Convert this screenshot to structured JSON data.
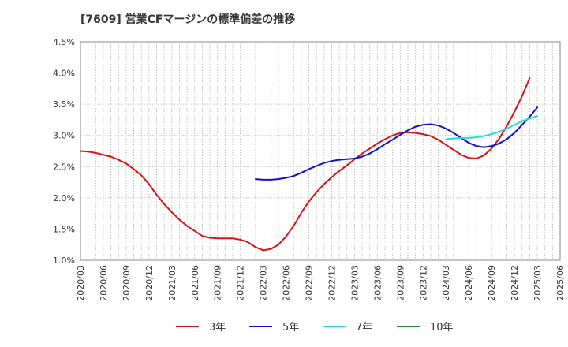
{
  "chart_data": {
    "type": "line",
    "title": "[7609]  営業CFマージンの標準偏差の推移",
    "xlabel": "",
    "ylabel": "",
    "ylim": [
      0.01,
      0.045
    ],
    "y_ticks": [
      "4.5%",
      "4.0%",
      "3.5%",
      "3.0%",
      "2.5%",
      "2.0%",
      "1.5%",
      "1.0%"
    ],
    "y_tick_values": [
      0.045,
      0.04,
      0.035,
      0.03,
      0.025,
      0.02,
      0.015,
      0.01
    ],
    "x_ticks": [
      "2020/03",
      "2020/06",
      "2020/09",
      "2020/12",
      "2021/03",
      "2021/06",
      "2021/09",
      "2021/12",
      "2022/03",
      "2022/06",
      "2022/09",
      "2022/12",
      "2023/03",
      "2023/06",
      "2023/09",
      "2023/12",
      "2024/03",
      "2024/06",
      "2024/09",
      "2024/12",
      "2025/03",
      "2025/06"
    ],
    "grid": true,
    "legend_position": "bottom",
    "series": [
      {
        "name": "3年",
        "color": "#dd1111",
        "points": [
          [
            "2020/03",
            0.0275
          ],
          [
            "2020/04",
            0.0274
          ],
          [
            "2020/05",
            0.0272
          ],
          [
            "2020/06",
            0.0269
          ],
          [
            "2020/07",
            0.0266
          ],
          [
            "2020/08",
            0.0261
          ],
          [
            "2020/09",
            0.0255
          ],
          [
            "2020/10",
            0.0246
          ],
          [
            "2020/11",
            0.0236
          ],
          [
            "2020/12",
            0.0222
          ],
          [
            "2021/01",
            0.0205
          ],
          [
            "2021/02",
            0.019
          ],
          [
            "2021/03",
            0.0177
          ],
          [
            "2021/04",
            0.0165
          ],
          [
            "2021/05",
            0.0155
          ],
          [
            "2021/06",
            0.0147
          ],
          [
            "2021/07",
            0.0139
          ],
          [
            "2021/08",
            0.0136
          ],
          [
            "2021/09",
            0.0135
          ],
          [
            "2021/10",
            0.0135
          ],
          [
            "2021/11",
            0.0135
          ],
          [
            "2021/12",
            0.0133
          ],
          [
            "2022/01",
            0.0129
          ],
          [
            "2022/02",
            0.0121
          ],
          [
            "2022/03",
            0.0116
          ],
          [
            "2022/04",
            0.0118
          ],
          [
            "2022/05",
            0.0125
          ],
          [
            "2022/06",
            0.0138
          ],
          [
            "2022/07",
            0.0155
          ],
          [
            "2022/08",
            0.0176
          ],
          [
            "2022/09",
            0.0194
          ],
          [
            "2022/10",
            0.0209
          ],
          [
            "2022/11",
            0.0222
          ],
          [
            "2022/12",
            0.0233
          ],
          [
            "2023/01",
            0.0243
          ],
          [
            "2023/02",
            0.0252
          ],
          [
            "2023/03",
            0.0262
          ],
          [
            "2023/04",
            0.0271
          ],
          [
            "2023/05",
            0.0279
          ],
          [
            "2023/06",
            0.0287
          ],
          [
            "2023/07",
            0.0294
          ],
          [
            "2023/08",
            0.03
          ],
          [
            "2023/09",
            0.0304
          ],
          [
            "2023/10",
            0.0305
          ],
          [
            "2023/11",
            0.0304
          ],
          [
            "2023/12",
            0.0302
          ],
          [
            "2024/01",
            0.0299
          ],
          [
            "2024/02",
            0.0293
          ],
          [
            "2024/03",
            0.0285
          ],
          [
            "2024/04",
            0.0277
          ],
          [
            "2024/05",
            0.0269
          ],
          [
            "2024/06",
            0.0264
          ],
          [
            "2024/07",
            0.0263
          ],
          [
            "2024/08",
            0.0268
          ],
          [
            "2024/09",
            0.0279
          ],
          [
            "2024/10",
            0.0295
          ],
          [
            "2024/11",
            0.0315
          ],
          [
            "2024/12",
            0.0338
          ],
          [
            "2025/01",
            0.0363
          ],
          [
            "2025/02",
            0.0392
          ]
        ]
      },
      {
        "name": "5年",
        "color": "#1111cc",
        "points": [
          [
            "2022/02",
            0.023
          ],
          [
            "2022/03",
            0.0229
          ],
          [
            "2022/04",
            0.0229
          ],
          [
            "2022/05",
            0.023
          ],
          [
            "2022/06",
            0.0232
          ],
          [
            "2022/07",
            0.0235
          ],
          [
            "2022/08",
            0.024
          ],
          [
            "2022/09",
            0.0246
          ],
          [
            "2022/10",
            0.0251
          ],
          [
            "2022/11",
            0.0256
          ],
          [
            "2022/12",
            0.0259
          ],
          [
            "2023/01",
            0.0261
          ],
          [
            "2023/02",
            0.0262
          ],
          [
            "2023/03",
            0.0263
          ],
          [
            "2023/04",
            0.0266
          ],
          [
            "2023/05",
            0.0271
          ],
          [
            "2023/06",
            0.0278
          ],
          [
            "2023/07",
            0.0286
          ],
          [
            "2023/08",
            0.0293
          ],
          [
            "2023/09",
            0.0301
          ],
          [
            "2023/10",
            0.0308
          ],
          [
            "2023/11",
            0.0314
          ],
          [
            "2023/12",
            0.0317
          ],
          [
            "2024/01",
            0.0318
          ],
          [
            "2024/02",
            0.0316
          ],
          [
            "2024/03",
            0.0311
          ],
          [
            "2024/04",
            0.0304
          ],
          [
            "2024/05",
            0.0296
          ],
          [
            "2024/06",
            0.0288
          ],
          [
            "2024/07",
            0.0283
          ],
          [
            "2024/08",
            0.0281
          ],
          [
            "2024/09",
            0.0283
          ],
          [
            "2024/10",
            0.0287
          ],
          [
            "2024/11",
            0.0294
          ],
          [
            "2024/12",
            0.0304
          ],
          [
            "2025/01",
            0.0317
          ],
          [
            "2025/02",
            0.033
          ],
          [
            "2025/03",
            0.0345
          ]
        ]
      },
      {
        "name": "7年",
        "color": "#22dddd",
        "points": [
          [
            "2024/03",
            0.0294
          ],
          [
            "2024/04",
            0.0295
          ],
          [
            "2024/05",
            0.0296
          ],
          [
            "2024/06",
            0.0296
          ],
          [
            "2024/07",
            0.0297
          ],
          [
            "2024/08",
            0.0299
          ],
          [
            "2024/09",
            0.0302
          ],
          [
            "2024/10",
            0.0306
          ],
          [
            "2024/11",
            0.0311
          ],
          [
            "2024/12",
            0.0317
          ],
          [
            "2025/01",
            0.0323
          ],
          [
            "2025/02",
            0.0327
          ],
          [
            "2025/03",
            0.0331
          ]
        ]
      },
      {
        "name": "10年",
        "color": "#228822",
        "points": []
      }
    ]
  }
}
